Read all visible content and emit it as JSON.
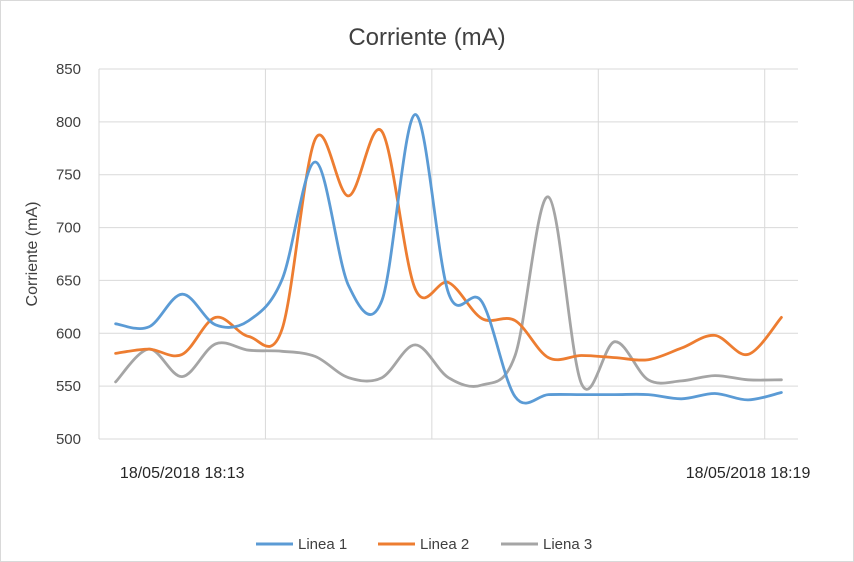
{
  "chart_data": {
    "type": "line",
    "title": "Corriente (mA)",
    "ylabel": "Corriente (mA)",
    "xlabel": "",
    "ylim": [
      500,
      850
    ],
    "yticks": [
      500,
      550,
      600,
      650,
      700,
      750,
      800,
      850
    ],
    "x_tick_labels": [
      {
        "label": "18/05/2018 18:13",
        "index": 2
      },
      {
        "label": "18/05/2018 18:19",
        "index": 19
      }
    ],
    "grid": true,
    "legend_position": "bottom",
    "series": [
      {
        "name": "Linea 1",
        "color": "#5b9bd5",
        "values": [
          609,
          606,
          637,
          608,
          612,
          651,
          762,
          645,
          631,
          807,
          638,
          630,
          540,
          542,
          542,
          542,
          542,
          538,
          543,
          537,
          544
        ]
      },
      {
        "name": "Linea 2",
        "color": "#ed7d31",
        "values": [
          581,
          585,
          580,
          615,
          597,
          604,
          784,
          730,
          791,
          642,
          648,
          614,
          612,
          577,
          579,
          577,
          575,
          586,
          598,
          580,
          615
        ]
      },
      {
        "name": "Liena 3",
        "color": "#a5a5a5",
        "values": [
          554,
          585,
          559,
          590,
          584,
          583,
          578,
          558,
          558,
          589,
          558,
          551,
          579,
          729,
          552,
          592,
          556,
          555,
          560,
          556,
          556
        ]
      }
    ]
  }
}
